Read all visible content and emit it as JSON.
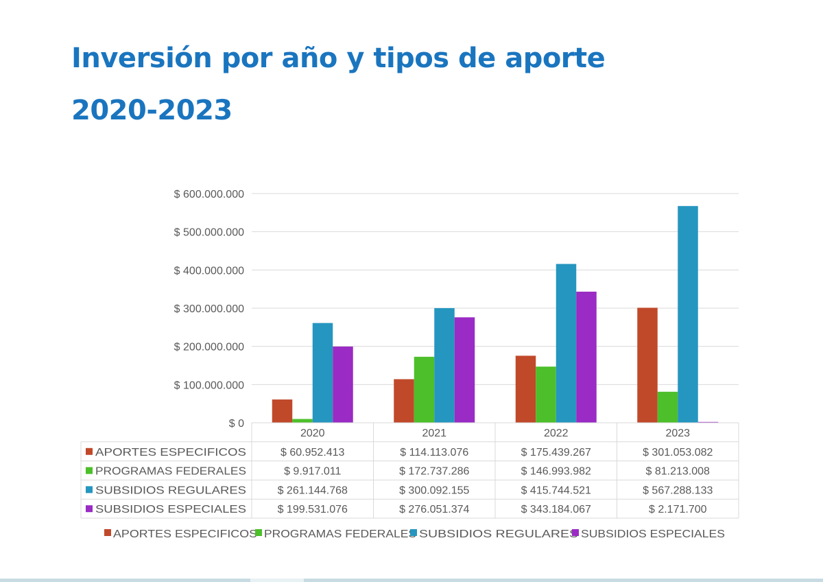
{
  "title": "Inversión por año y tipos de aporte",
  "subtitle": "2020-2023",
  "chart_data": {
    "type": "bar",
    "title": "Inversión por año y tipos de aporte 2020-2023",
    "categories": [
      "2020",
      "2021",
      "2022",
      "2023"
    ],
    "series": [
      {
        "name": "APORTES ESPECIFICOS",
        "color": "#c0492a",
        "values": [
          60952413,
          114113076,
          175439267,
          301053082
        ],
        "labels": [
          "$ 60.952.413",
          "$ 114.113.076",
          "$ 175.439.267",
          "$ 301.053.082"
        ]
      },
      {
        "name": "PROGRAMAS FEDERALES",
        "color": "#4cbf2a",
        "values": [
          9917011,
          172737286,
          146993982,
          81213008
        ],
        "labels": [
          "$ 9.917.011",
          "$ 172.737.286",
          "$ 146.993.982",
          "$ 81.213.008"
        ]
      },
      {
        "name": "SUBSIDIOS REGULARES",
        "color": "#2596bf",
        "values": [
          261144768,
          300092155,
          415744521,
          567288133
        ],
        "labels": [
          "$ 261.144.768",
          "$ 300.092.155",
          "$ 415.744.521",
          "$ 567.288.133"
        ]
      },
      {
        "name": "SUBSIDIOS ESPECIALES",
        "color": "#9a2bc4",
        "values": [
          199531076,
          276051374,
          343184067,
          2171700
        ],
        "labels": [
          "$ 199.531.076",
          "$ 276.051.374",
          "$ 343.184.067",
          "$ 2.171.700"
        ]
      }
    ],
    "ylim": [
      0,
      600000000
    ],
    "yticks": [
      0,
      100000000,
      200000000,
      300000000,
      400000000,
      500000000,
      600000000
    ],
    "ytick_labels": [
      "$ 0",
      "$ 100.000.000",
      "$ 200.000.000",
      "$ 300.000.000",
      "$ 400.000.000",
      "$ 500.000.000",
      "$ 600.000.000"
    ],
    "grid": true,
    "legend": "bottom",
    "data_table": true
  }
}
